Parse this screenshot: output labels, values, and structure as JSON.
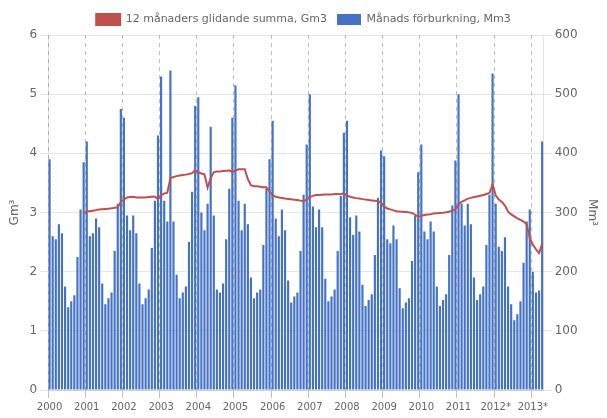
{
  "chart_data": {
    "type": "bar",
    "ylabel": "Gm³",
    "y2label": "Mm³",
    "ylim": [
      0,
      6
    ],
    "yticks": [
      0,
      1,
      2,
      3,
      4,
      5,
      6
    ],
    "y2lim": [
      0,
      600
    ],
    "y2ticks": [
      0,
      100,
      200,
      300,
      400,
      500,
      600
    ],
    "grid": true,
    "legend": "top",
    "categories": [
      "2000",
      null,
      null,
      null,
      null,
      null,
      null,
      null,
      null,
      null,
      null,
      null,
      "2001",
      null,
      null,
      null,
      null,
      null,
      null,
      null,
      null,
      null,
      null,
      null,
      "2002",
      null,
      null,
      null,
      null,
      null,
      null,
      null,
      null,
      null,
      null,
      null,
      "2003",
      null,
      null,
      null,
      null,
      null,
      null,
      null,
      null,
      null,
      null,
      null,
      "2004",
      null,
      null,
      null,
      null,
      null,
      null,
      null,
      null,
      null,
      null,
      null,
      "2005",
      null,
      null,
      null,
      null,
      null,
      null,
      null,
      null,
      null,
      null,
      null,
      "2006",
      null,
      null,
      null,
      null,
      null,
      null,
      null,
      null,
      null,
      null,
      null,
      "2007",
      null,
      null,
      null,
      null,
      null,
      null,
      null,
      null,
      null,
      null,
      null,
      "2008",
      null,
      null,
      null,
      null,
      null,
      null,
      null,
      null,
      null,
      null,
      null,
      "2009",
      null,
      null,
      null,
      null,
      null,
      null,
      null,
      null,
      null,
      null,
      null,
      "2010",
      null,
      null,
      null,
      null,
      null,
      null,
      null,
      null,
      null,
      null,
      null,
      "2011",
      null,
      null,
      null,
      null,
      null,
      null,
      null,
      null,
      null,
      null,
      null,
      "2012*",
      null,
      null,
      null,
      null,
      null,
      null,
      null,
      null,
      null,
      null,
      null,
      "2013*",
      null,
      null,
      null
    ],
    "series": [
      {
        "name": "Månads förburkning, Mm3",
        "type": "bar",
        "axis": "y2",
        "color": "#4472C4",
        "values": [
          390,
          260,
          255,
          280,
          265,
          175,
          140,
          150,
          160,
          225,
          305,
          385,
          420,
          260,
          265,
          290,
          275,
          180,
          145,
          155,
          165,
          235,
          315,
          475,
          460,
          295,
          270,
          295,
          265,
          180,
          145,
          155,
          170,
          240,
          320,
          430,
          530,
          320,
          285,
          540,
          285,
          195,
          155,
          165,
          175,
          250,
          335,
          480,
          495,
          300,
          270,
          315,
          445,
          295,
          170,
          165,
          180,
          255,
          340,
          460,
          515,
          320,
          270,
          315,
          280,
          190,
          155,
          165,
          170,
          245,
          340,
          390,
          455,
          290,
          260,
          305,
          270,
          185,
          148,
          158,
          165,
          235,
          330,
          415,
          500,
          310,
          275,
          305,
          275,
          188,
          150,
          158,
          170,
          235,
          328,
          435,
          455,
          292,
          262,
          295,
          268,
          178,
          142,
          152,
          162,
          228,
          325,
          405,
          395,
          255,
          248,
          278,
          255,
          172,
          138,
          148,
          155,
          218,
          295,
          368,
          415,
          268,
          255,
          285,
          268,
          175,
          142,
          152,
          162,
          228,
          312,
          388,
          500,
          315,
          278,
          315,
          280,
          190,
          152,
          162,
          175,
          245,
          330,
          535,
          315,
          242,
          235,
          258,
          175,
          145,
          118,
          128,
          150,
          215,
          285,
          305,
          200,
          165,
          168,
          420
        ]
      },
      {
        "name": "12 månaders glidande summa, Gm3",
        "type": "line",
        "axis": "y",
        "color": "#C0504D",
        "values": [
          null,
          null,
          null,
          null,
          null,
          null,
          null,
          null,
          null,
          null,
          null,
          2.99,
          3.02,
          3.02,
          3.03,
          3.04,
          3.05,
          3.055,
          3.06,
          3.065,
          3.07,
          3.08,
          3.09,
          3.18,
          3.22,
          3.255,
          3.26,
          3.265,
          3.255,
          3.255,
          3.255,
          3.255,
          3.26,
          3.265,
          3.27,
          3.225,
          3.295,
          3.32,
          3.335,
          3.58,
          3.6,
          3.615,
          3.625,
          3.635,
          3.64,
          3.65,
          3.665,
          3.715,
          3.68,
          3.66,
          3.645,
          3.42,
          3.58,
          3.68,
          3.695,
          3.695,
          3.7,
          3.705,
          3.71,
          3.69,
          3.71,
          3.73,
          3.73,
          3.73,
          3.565,
          3.46,
          3.445,
          3.445,
          3.435,
          3.425,
          3.425,
          3.355,
          3.295,
          3.265,
          3.255,
          3.245,
          3.235,
          3.23,
          3.223,
          3.216,
          3.211,
          3.201,
          3.191,
          3.216,
          3.261,
          3.281,
          3.296,
          3.296,
          3.301,
          3.304,
          3.306,
          3.306,
          3.311,
          3.311,
          3.309,
          3.329,
          3.284,
          3.266,
          3.253,
          3.243,
          3.236,
          3.226,
          3.218,
          3.212,
          3.204,
          3.197,
          3.194,
          3.164,
          3.104,
          3.067,
          3.053,
          3.036,
          3.023,
          3.017,
          3.013,
          3.009,
          3.002,
          2.992,
          2.962,
          2.925,
          2.945,
          2.958,
          2.965,
          2.972,
          2.985,
          2.988,
          2.992,
          2.996,
          3.003,
          3.013,
          3.03,
          3.05,
          3.135,
          3.182,
          3.205,
          3.235,
          3.247,
          3.262,
          3.272,
          3.282,
          3.295,
          3.312,
          3.33,
          3.477,
          3.292,
          3.219,
          3.176,
          3.119,
          3.014,
          2.969,
          2.935,
          2.901,
          2.876,
          2.846,
          2.801,
          2.571,
          2.456,
          2.379,
          2.312,
          2.474
        ]
      }
    ]
  }
}
